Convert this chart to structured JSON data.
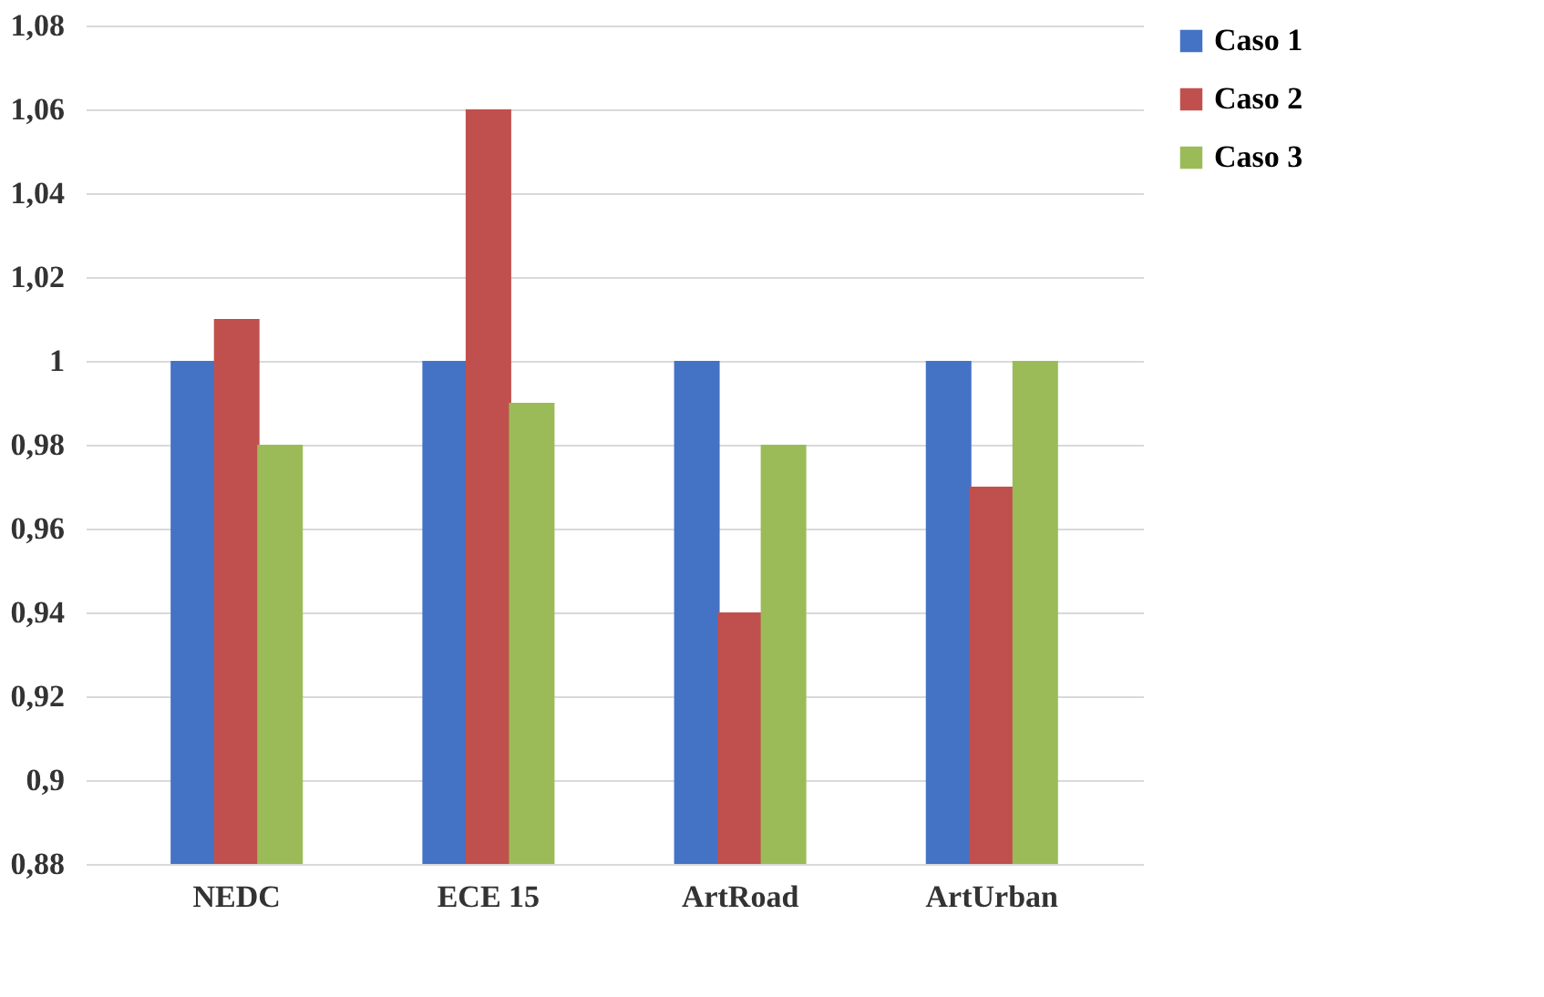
{
  "chart_data": {
    "type": "bar",
    "categories": [
      "NEDC",
      "ECE 15",
      "ArtRoad",
      "ArtUrban"
    ],
    "series": [
      {
        "name": "Caso 1",
        "color": "#4472c4",
        "values": [
          1,
          1,
          1,
          1
        ]
      },
      {
        "name": "Caso 2",
        "color": "#c0504d",
        "values": [
          1.01,
          1.06,
          0.94,
          0.97
        ]
      },
      {
        "name": "Caso 3",
        "color": "#9bbb59",
        "values": [
          0.98,
          0.99,
          0.98,
          1.0
        ]
      }
    ],
    "ylim": [
      0.88,
      1.08
    ],
    "yticks": [
      {
        "value": 0.88,
        "label": "0,88"
      },
      {
        "value": 0.9,
        "label": "0,9"
      },
      {
        "value": 0.92,
        "label": "0,92"
      },
      {
        "value": 0.94,
        "label": "0,94"
      },
      {
        "value": 0.96,
        "label": "0,96"
      },
      {
        "value": 0.98,
        "label": "0,98"
      },
      1,
      {
        "value": 1.02,
        "label": "1,02"
      },
      {
        "value": 1.04,
        "label": "1,04"
      },
      {
        "value": 1.06,
        "label": "1,06"
      },
      {
        "value": 1.08,
        "label": "1,08"
      }
    ],
    "grid": "y",
    "legend": "right"
  }
}
